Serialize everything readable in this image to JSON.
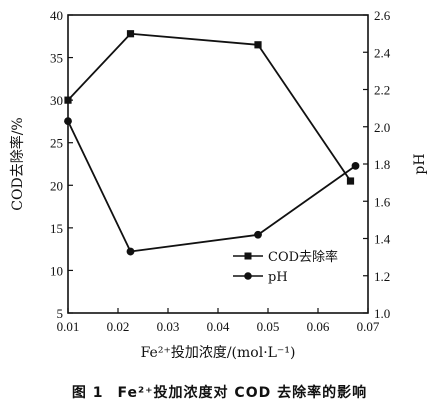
{
  "chart_data": {
    "type": "line",
    "xlabel": "Fe²⁺投加浓度/(mol·L⁻¹)",
    "ylabel_left": "COD去除率/%",
    "ylabel_right": "pH",
    "x_ticks": [
      "0.01",
      "0.02",
      "0.03",
      "0.04",
      "0.05",
      "0.06",
      "0.07"
    ],
    "y_left_ticks": [
      "5",
      "10",
      "15",
      "20",
      "25",
      "30",
      "35",
      "40"
    ],
    "y_right_ticks": [
      "1.0",
      "1.2",
      "1.4",
      "1.6",
      "1.8",
      "2.0",
      "2.2",
      "2.4",
      "2.6"
    ],
    "xlim": [
      0.01,
      0.07
    ],
    "ylim_left": [
      5,
      40
    ],
    "ylim_right": [
      1.0,
      2.6
    ],
    "legend_position": "lower-right",
    "series": [
      {
        "name": "COD去除率",
        "axis": "left",
        "marker": "square",
        "x": [
          0.01,
          0.0225,
          0.048,
          0.0665
        ],
        "values": [
          30,
          37.8,
          36.5,
          20.5
        ]
      },
      {
        "name": "pH",
        "axis": "right",
        "marker": "circle",
        "x": [
          0.01,
          0.0225,
          0.048,
          0.0675
        ],
        "values": [
          2.03,
          1.33,
          1.42,
          1.79
        ]
      }
    ]
  },
  "caption": {
    "number": "图 1",
    "text": "Fe²⁺投加浓度对 COD 去除率的影响"
  }
}
